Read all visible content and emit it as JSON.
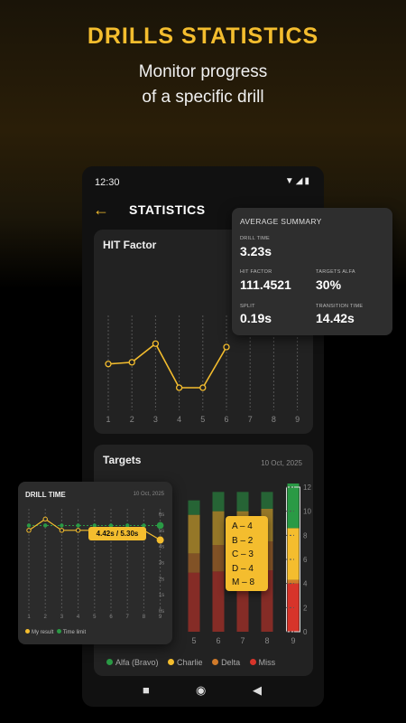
{
  "hero": {
    "title": "DRILLS STATISTICS",
    "subtitle_line1": "Monitor progress",
    "subtitle_line2": "of a specific drill"
  },
  "status_bar": {
    "time": "12:30",
    "icons": "▼◢▮"
  },
  "app_bar": {
    "back_icon": "←",
    "title": "STATISTICS"
  },
  "hit_card": {
    "title": "HIT Factor"
  },
  "targets_card": {
    "title": "Targets",
    "date": "10 Oct, 2025"
  },
  "average_summary": {
    "title": "AVERAGE SUMMARY",
    "drill_time_label": "DRILL TIME",
    "drill_time": "3.23s",
    "hit_factor_label": "HIT FACTOR",
    "hit_factor": "111.4521",
    "targets_alfa_label": "TARGETS ALFA",
    "targets_alfa": "30%",
    "split_label": "SPLIT",
    "split": "0.19s",
    "transition_label": "TRANSITION TIME",
    "transition": "14.42s"
  },
  "drill_time_card": {
    "title": "DRILL TIME",
    "date": "10 Oct, 2025",
    "tooltip": "4.42s / 5.30s",
    "legend_my_result": "My result",
    "legend_time_limit": "Time limit"
  },
  "breakdown": {
    "lines": [
      "A – 4",
      "B – 2",
      "C – 3",
      "D – 4",
      "M – 8"
    ]
  },
  "targets_legend": {
    "alfa": "Alfa (Bravo)",
    "charlie": "Charlie",
    "delta": "Delta",
    "miss": "Miss"
  },
  "nav": {
    "square": "■",
    "circle": "◉",
    "back": "◀"
  },
  "colors": {
    "accent": "#f4bd2e",
    "alfa": "#2a9a45",
    "charlie": "#f4bd2e",
    "delta": "#d07a2a",
    "miss": "#d7342a"
  },
  "chart_data": [
    {
      "type": "line",
      "title": "HIT Factor",
      "categories": [
        "1",
        "2",
        "3",
        "4",
        "5",
        "6",
        "7",
        "8",
        "9"
      ],
      "series": [
        {
          "values": [
            31,
            31.5,
            37,
            24,
            24,
            36,
            null,
            null,
            null
          ]
        }
      ]
    },
    {
      "type": "bar",
      "title": "Targets",
      "categories": [
        "5",
        "6",
        "7",
        "8",
        "9"
      ],
      "yticks": [
        "0",
        "2",
        "4",
        "6",
        "8",
        "10",
        "12"
      ],
      "ylim": [
        0,
        12
      ],
      "series": [
        {
          "name": "Alfa (Bravo)",
          "values": [
            1.2,
            1.6,
            1.6,
            1.4,
            3.7
          ]
        },
        {
          "name": "Charlie",
          "values": [
            3.2,
            2.8,
            2.6,
            2.7,
            4.3
          ]
        },
        {
          "name": "Delta",
          "values": [
            1.6,
            2.2,
            2.4,
            2.4,
            0.3
          ]
        },
        {
          "name": "Miss",
          "values": [
            4.9,
            5.0,
            5.0,
            5.1,
            4.0
          ]
        }
      ]
    },
    {
      "type": "line",
      "title": "DRILL TIME",
      "categories": [
        "1",
        "2",
        "3",
        "4",
        "5",
        "6",
        "7",
        "8",
        "9"
      ],
      "yticks": [
        "0s",
        "1s",
        "2s",
        "3s",
        "4s",
        "5s",
        "6s"
      ],
      "ylim": [
        0,
        6
      ],
      "series": [
        {
          "name": "My result",
          "values": [
            5.0,
            5.7,
            5.0,
            5.0,
            5.0,
            5.0,
            5.0,
            5.0,
            4.4
          ]
        },
        {
          "name": "Time limit",
          "values": [
            5.3,
            5.3,
            5.3,
            5.3,
            5.3,
            5.3,
            5.3,
            5.3,
            5.3
          ]
        }
      ]
    }
  ]
}
